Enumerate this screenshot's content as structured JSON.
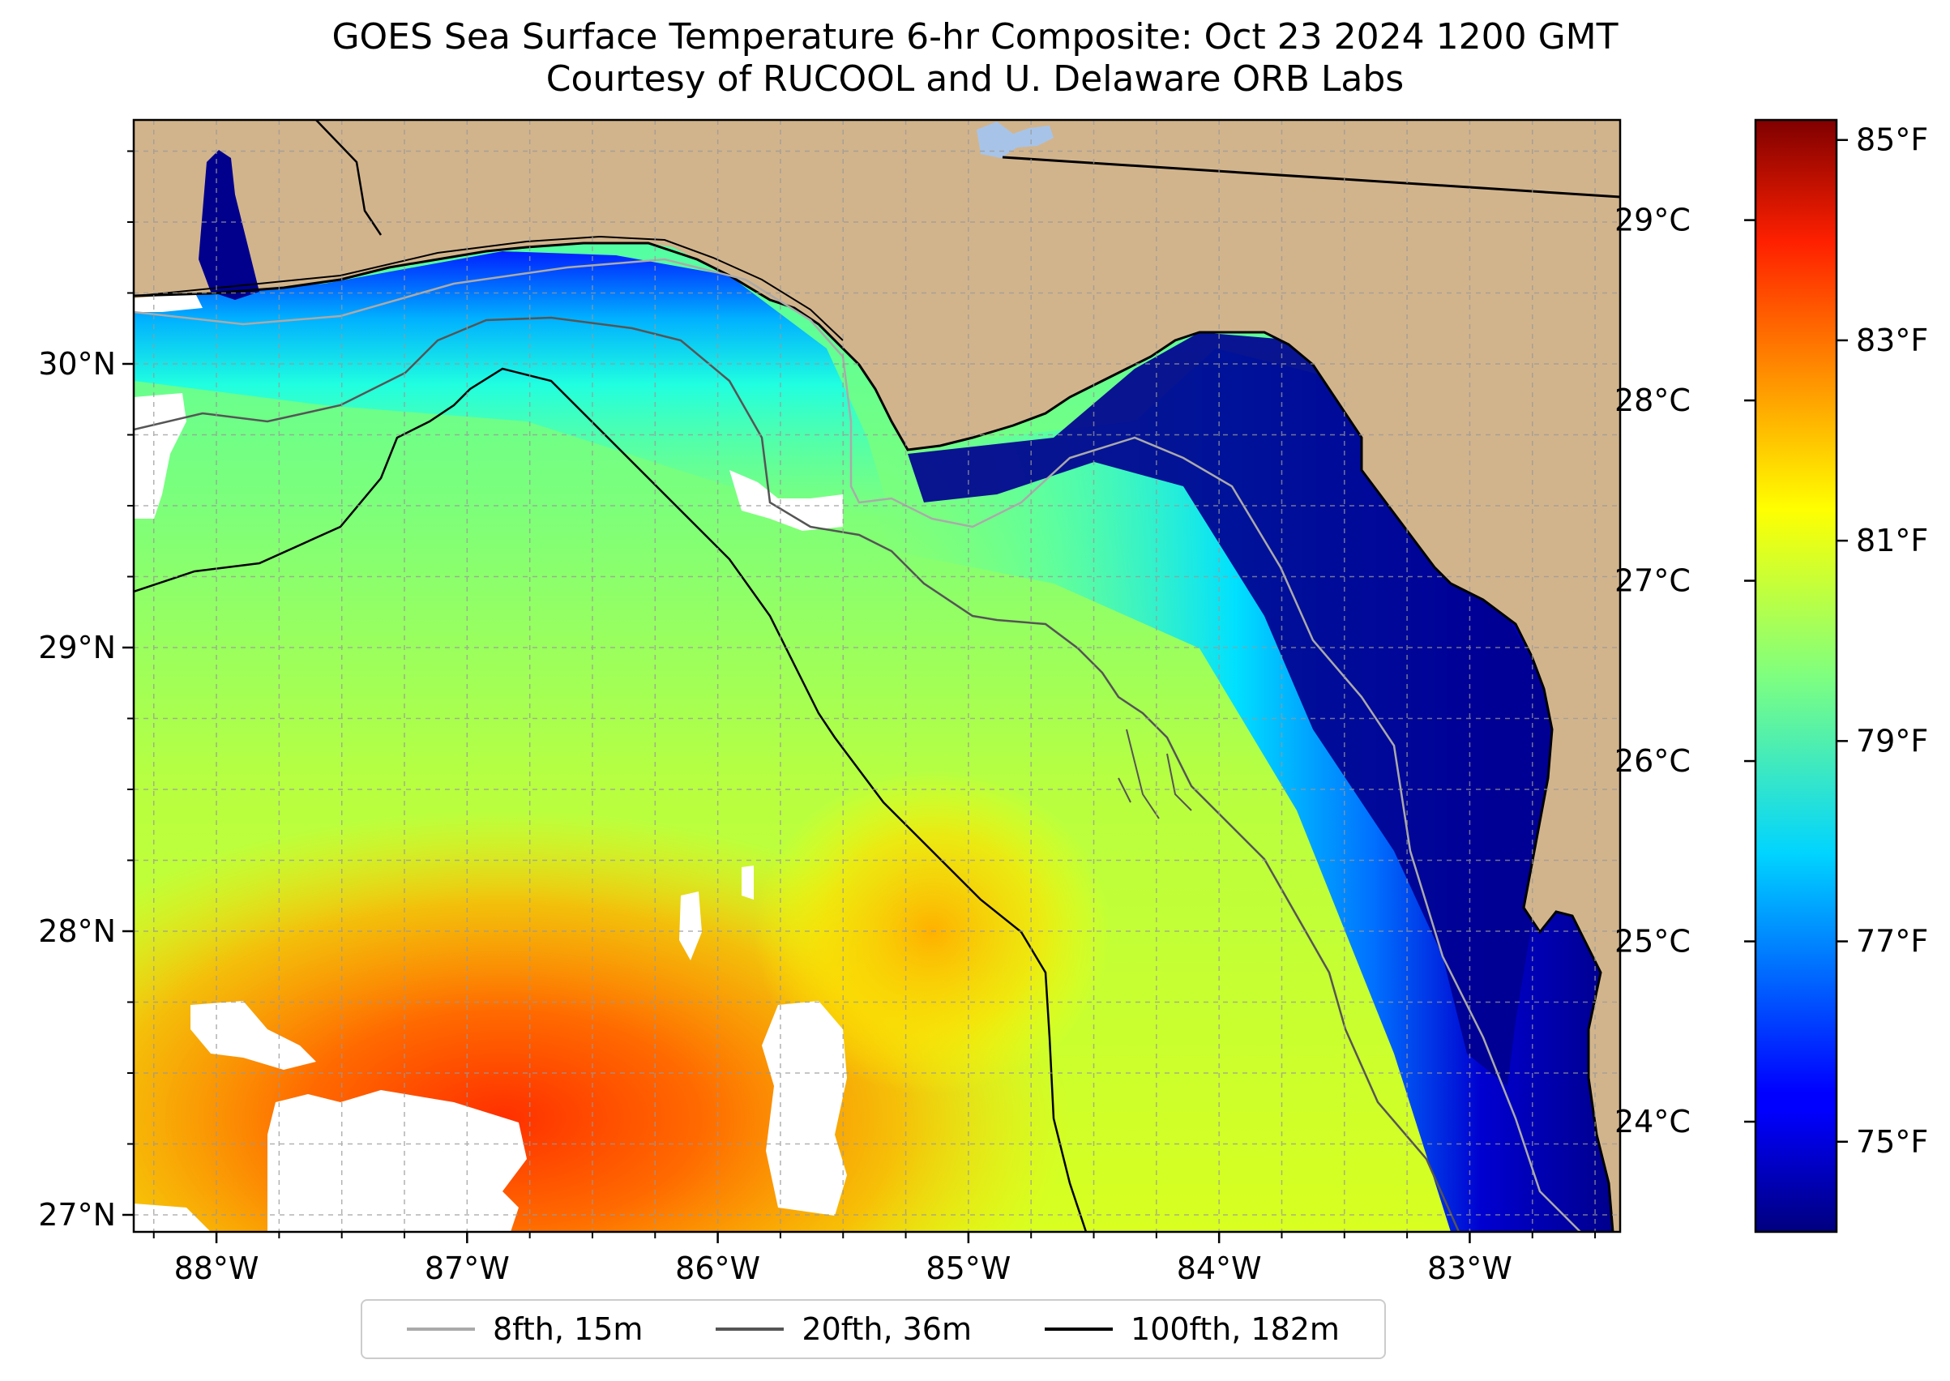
{
  "title": {
    "line1": "GOES Sea Surface Temperature 6-hr Composite: Oct 23 2024 1200 GMT",
    "line2": "Courtesy of RUCOOL and U. Delaware ORB Labs"
  },
  "map": {
    "extent": {
      "lon": [
        -88.33,
        -82.4
      ],
      "lat": [
        26.94,
        30.86
      ]
    },
    "lon_ticks": [
      {
        "value": -88,
        "label": "88°W"
      },
      {
        "value": -87,
        "label": "87°W"
      },
      {
        "value": -86,
        "label": "86°W"
      },
      {
        "value": -85,
        "label": "85°W"
      },
      {
        "value": -84,
        "label": "84°W"
      },
      {
        "value": -83,
        "label": "83°W"
      }
    ],
    "lat_ticks": [
      {
        "value": 27,
        "label": "27°N"
      },
      {
        "value": 28,
        "label": "28°N"
      },
      {
        "value": 29,
        "label": "29°N"
      },
      {
        "value": 30,
        "label": "30°N"
      }
    ],
    "gridlines": "dashed",
    "colors": {
      "land": "#D2B48C",
      "nodata": "#ffffff",
      "inland_water": "#a7c4e8"
    }
  },
  "colorbar": {
    "colormap": "jet",
    "range_f": [
      74.1,
      85.2
    ],
    "celsius_ticks": [
      {
        "value": 24,
        "label": "24°C"
      },
      {
        "value": 25,
        "label": "25°C"
      },
      {
        "value": 26,
        "label": "26°C"
      },
      {
        "value": 27,
        "label": "27°C"
      },
      {
        "value": 28,
        "label": "28°C"
      },
      {
        "value": 29,
        "label": "29°C"
      }
    ],
    "fahrenheit_ticks": [
      {
        "value": 75,
        "label": "75°F"
      },
      {
        "value": 77,
        "label": "77°F"
      },
      {
        "value": 79,
        "label": "79°F"
      },
      {
        "value": 81,
        "label": "81°F"
      },
      {
        "value": 83,
        "label": "83°F"
      },
      {
        "value": 85,
        "label": "85°F"
      }
    ]
  },
  "legend": {
    "items": [
      {
        "label": "8fth, 15m",
        "color": "#aaaaaa"
      },
      {
        "label": "20fth, 36m",
        "color": "#555555"
      },
      {
        "label": "100fth, 182m",
        "color": "#000000"
      }
    ]
  }
}
